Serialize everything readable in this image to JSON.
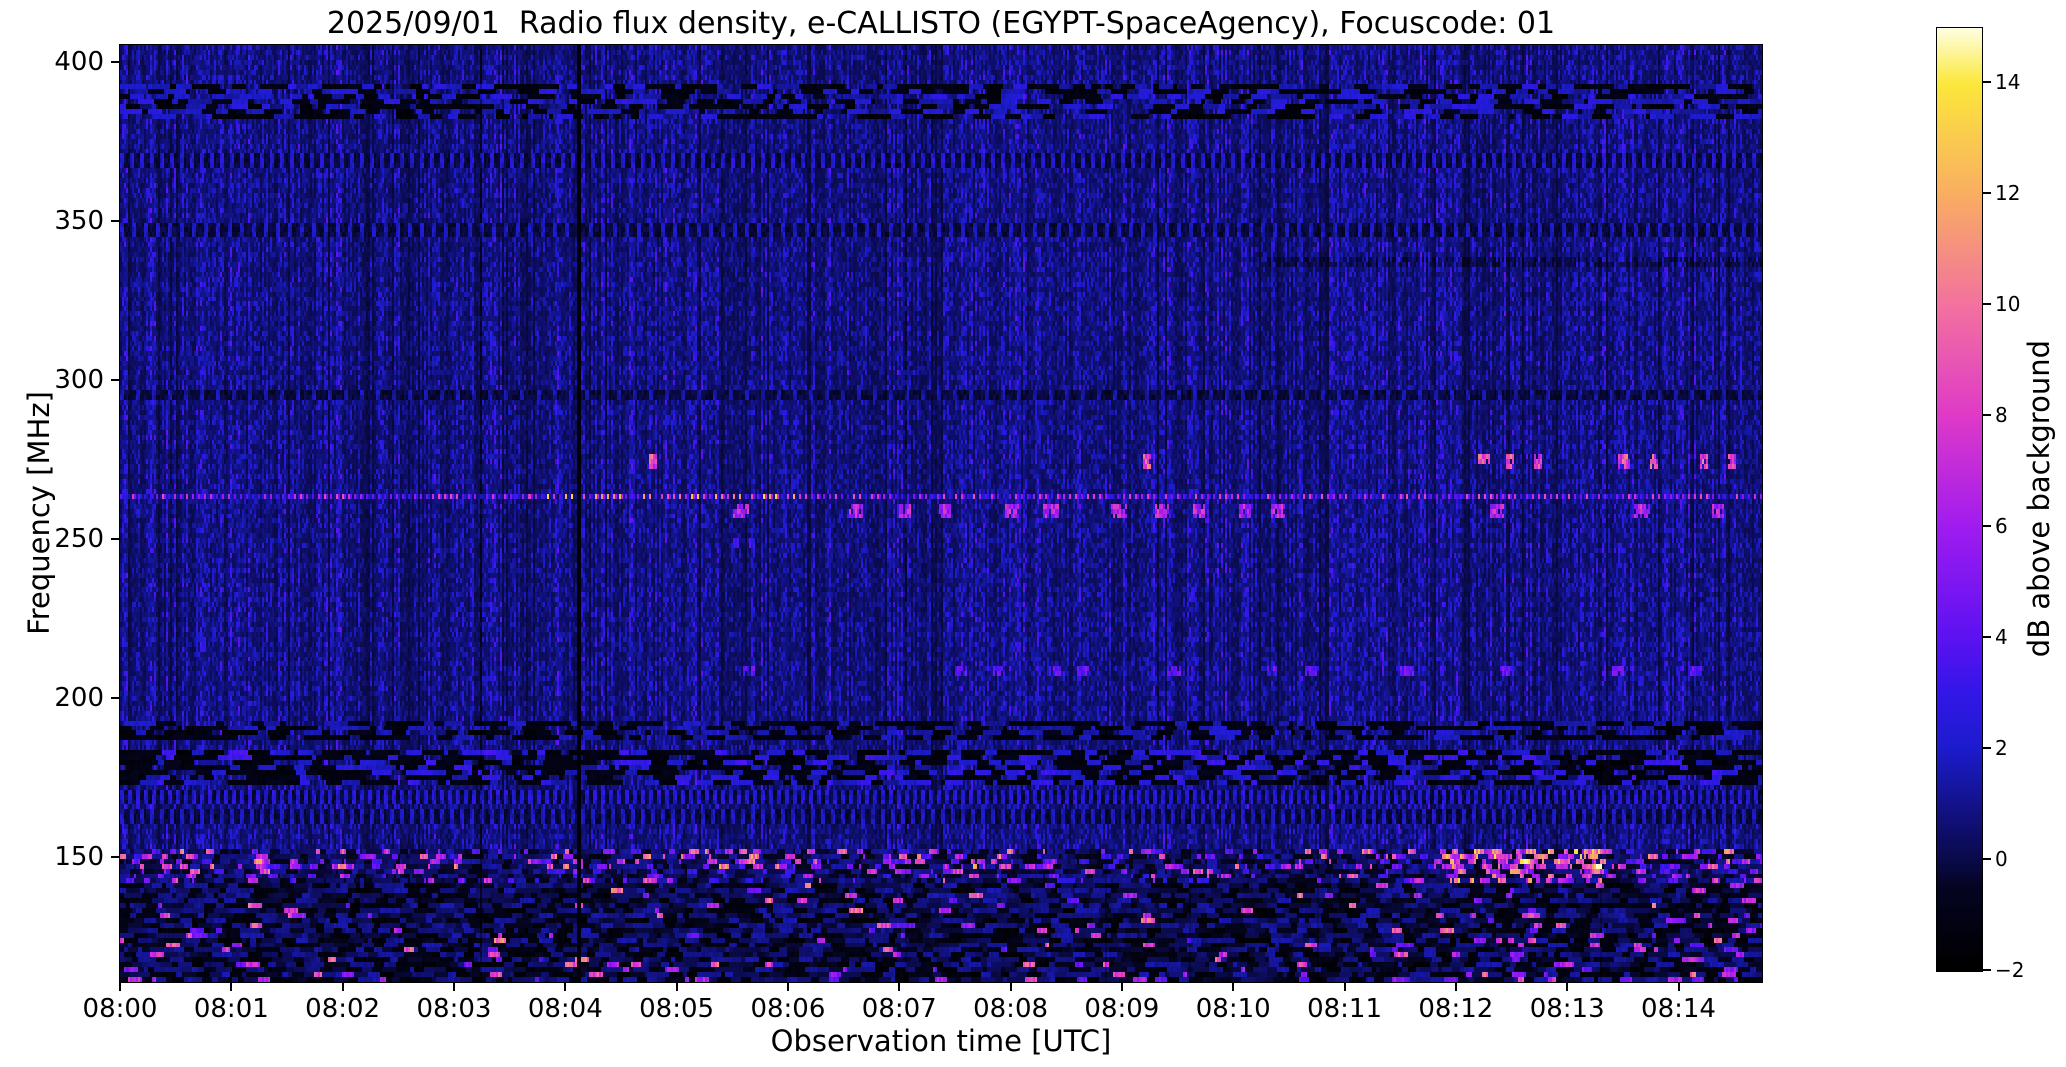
{
  "chart_data": {
    "type": "heatmap",
    "subtype": "radio-spectrogram",
    "title": "2025/09/01  Radio flux density, e-CALLISTO (EGYPT-SpaceAgency), Focuscode: 01",
    "date": "2025/09/01",
    "instrument": "e-CALLISTO",
    "station": "EGYPT-SpaceAgency",
    "focuscode": "01",
    "xlabel": "Observation time [UTC]",
    "ylabel": "Frequency [MHz]",
    "time_axis": {
      "start": "08:00",
      "duration_min": 14.75,
      "tick_interval_min": 1,
      "tick_labels": [
        "08:00",
        "08:01",
        "08:02",
        "08:03",
        "08:04",
        "08:05",
        "08:06",
        "08:07",
        "08:08",
        "08:09",
        "08:10",
        "08:11",
        "08:12",
        "08:13",
        "08:14"
      ]
    },
    "freq_axis": {
      "min_mhz": 110.6,
      "max_mhz": 405.3,
      "ticks": [
        150,
        200,
        250,
        300,
        350,
        400
      ]
    },
    "colorbar": {
      "label": "dB above background",
      "vmin": -2,
      "vmax": 15,
      "tick_values": [
        -2,
        0,
        2,
        4,
        6,
        8,
        10,
        12,
        14
      ],
      "tick_labels": [
        "−2",
        "0",
        "2",
        "4",
        "6",
        "8",
        "10",
        "12",
        "14"
      ],
      "colormap_name": "gnuplot2-like",
      "colormap_stops": [
        [
          -2.0,
          "#000000"
        ],
        [
          -0.5,
          "#050522"
        ],
        [
          0.0,
          "#0a0a4a"
        ],
        [
          2.0,
          "#1c1ccd"
        ],
        [
          3.0,
          "#3317e8"
        ],
        [
          4.0,
          "#5c12f2"
        ],
        [
          6.0,
          "#a01cf0"
        ],
        [
          8.0,
          "#df3ac8"
        ],
        [
          10.0,
          "#f372a0"
        ],
        [
          12.0,
          "#f9ae62"
        ],
        [
          14.0,
          "#fce83c"
        ],
        [
          15.0,
          "#ffffe0"
        ]
      ]
    },
    "background_description": "dark navy blue with fine vertical column striping noise, values mostly 0-2 dB",
    "features": {
      "bands": [
        {
          "name": "rfi-band-388MHz",
          "freq": 388,
          "half_width_mhz": 4.5,
          "style": "dark_mottle",
          "dark_prob": 0.42,
          "bright_prob": 0.3,
          "bright_value": 2.8
        },
        {
          "name": "rfi-line-370MHz",
          "freq": 370,
          "half_width_mhz": 1.5,
          "style": "dotted",
          "period": 5,
          "value": 2.1
        },
        {
          "name": "rfi-line-348MHz",
          "freq": 348,
          "half_width_mhz": 1.3,
          "style": "dotted",
          "period": 6,
          "value": 1.8
        },
        {
          "name": "rfi-line-338MHz",
          "freq": 338,
          "half_width_mhz": 1.0,
          "style": "faint_dark",
          "from_min": 10.3,
          "to_min": 14.75
        },
        {
          "name": "rfi-line-296MHz",
          "freq": 296,
          "half_width_mhz": 1.0,
          "style": "dotted",
          "period": 8,
          "value": 1.5
        },
        {
          "name": "rfi-blobs-275MHz",
          "freq": 275,
          "half_width_mhz": 1.2,
          "style": "blob_row",
          "times_min": [
            4.75,
            9.2,
            12.2,
            12.45,
            12.7,
            13.45,
            13.75,
            14.2,
            14.45
          ],
          "value": 8.5,
          "blob_cells": 4
        },
        {
          "name": "rfi-dotline-264MHz",
          "freq": 264,
          "half_width_mhz": 1.0,
          "style": "bright_dotline",
          "period": 3,
          "value_min": 2.5,
          "value_max": 9,
          "peak_from_min": 3.8,
          "peak_to_min": 6.3,
          "peak_value": 13
        },
        {
          "name": "rfi-blobs-259MHz",
          "freq": 259,
          "half_width_mhz": 1.8,
          "style": "blob_row",
          "times_min": [
            5.5,
            6.55,
            7.0,
            7.35,
            7.95,
            8.3,
            8.9,
            9.3,
            9.65,
            10.05,
            10.35,
            12.3,
            13.6,
            14.3
          ],
          "value": 6.5,
          "blob_cells": 6
        },
        {
          "name": "rfi-dots-249MHz",
          "freq": 249,
          "half_width_mhz": 1.0,
          "style": "blob_row",
          "times_min": [
            5.5,
            5.65
          ],
          "value": 3.2,
          "blob_cells": 2
        },
        {
          "name": "rfi-dashes-209MHz",
          "freq": 209,
          "half_width_mhz": 1.4,
          "style": "blob_row",
          "times_min": [
            5.6,
            7.5,
            7.85,
            8.35,
            8.6,
            9.4,
            10.3,
            10.65,
            11.5,
            12.4,
            13.4,
            14.1
          ],
          "value": 4.2,
          "blob_cells": 5
        },
        {
          "name": "rfi-band-190MHz",
          "freq": 190,
          "half_width_mhz": 2.2,
          "style": "dark_mottle",
          "dark_prob": 0.5,
          "bright_prob": 0.2,
          "bright_value": 2.2
        },
        {
          "name": "rfi-band-180MHz",
          "freq": 179,
          "half_width_mhz": 4.5,
          "style": "dark_mottle",
          "dark_prob": 0.52,
          "bright_prob": 0.3,
          "bright_value": 3.4
        },
        {
          "name": "rfi-line-170MHz",
          "freq": 170,
          "half_width_mhz": 1.3,
          "style": "dotted",
          "period": 4,
          "value": 2.2
        },
        {
          "name": "rfi-line-163MHz",
          "freq": 163,
          "half_width_mhz": 1.2,
          "style": "dotted",
          "period": 5,
          "value": 1.8
        },
        {
          "name": "fm-band-150MHz",
          "freq": 150,
          "half_width_mhz": 3.2,
          "style": "busy",
          "bright_prob": 0.25,
          "value_min": 3,
          "value_max": 11,
          "boost_from_min": 11.8,
          "boost_to_min": 13.3,
          "boost_prob": 0.6
        },
        {
          "name": "fm-band-145MHz",
          "freq": 145,
          "half_width_mhz": 2.0,
          "style": "busy",
          "bright_prob": 0.18,
          "value_min": 2.5,
          "value_max": 9,
          "boost_from_min": 11.8,
          "boost_to_min": 13.3,
          "boost_prob": 0.45
        },
        {
          "name": "low-band-mottle",
          "freq": 126,
          "half_width_mhz": 16,
          "style": "low_mottle",
          "dark_prob": 0.35,
          "bright_prob": 0.05,
          "value_min": 4,
          "value_max": 10,
          "boost_windows_min": [
            [
              12.15,
              13.0
            ],
            [
              14.1,
              14.75
            ]
          ]
        }
      ],
      "vertical_lines": [
        {
          "name": "data-gap-0803",
          "time_min": 3.23,
          "width_cells": 1,
          "strength": "weak"
        },
        {
          "name": "data-gap-0804",
          "time_min": 4.1,
          "width_cells": 2,
          "strength": "strong"
        }
      ],
      "dim_columns_min": [
        7.05,
        8.85,
        9.6,
        10.75,
        13.3
      ]
    }
  },
  "layout_text": {
    "note": ""
  }
}
